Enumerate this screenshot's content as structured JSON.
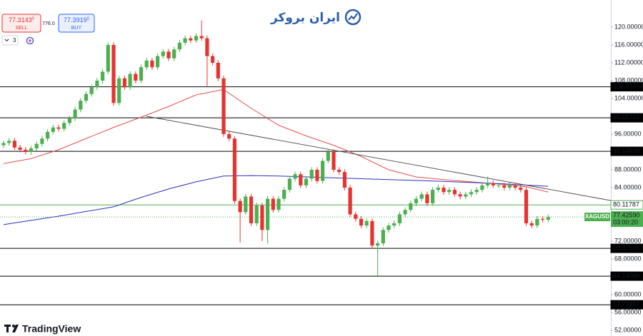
{
  "header": {
    "logo_text": "ایران بروکر",
    "brand": "TradingView",
    "sell": {
      "price": "77.31",
      "pips": "43",
      "fraction": "0",
      "label": "SELL"
    },
    "spread": "776.0",
    "buy": {
      "price": "77.39",
      "pips": "19",
      "fraction": "0",
      "label": "BUY"
    },
    "indicator_count": "3"
  },
  "chart_data": {
    "type": "candlestick",
    "symbol": "XAGUSD",
    "open": [
      93.5,
      94.0,
      94.5,
      93.0,
      92.5,
      92.0,
      92.8,
      93.8,
      95.0,
      96.5,
      97.5,
      97.2,
      98.5,
      99.5,
      101.5,
      103.5,
      105.0,
      106.5,
      108.0,
      110.0,
      116.0,
      103.0,
      108.5,
      106.5,
      109.5,
      108.0,
      111.0,
      112.5,
      111.0,
      113.5,
      114.5,
      113.0,
      115.0,
      116.5,
      117.5,
      117.0,
      118.0,
      117.5,
      113.5,
      112.0,
      108.5,
      96.0,
      95.0,
      81.0,
      78.5,
      82.0,
      76.0,
      80.0,
      74.5,
      81.5,
      79.0,
      81.5,
      83.5,
      86.0,
      87.0,
      84.5,
      86.0,
      88.0,
      85.5,
      90.0,
      92.0,
      88.0,
      87.5,
      84.0,
      78.0,
      77.0,
      75.5,
      76.5,
      71.0,
      71.5,
      74.5,
      75.5,
      76.0,
      78.0,
      79.0,
      80.5,
      81.5,
      82.5,
      80.5,
      83.5,
      84.0,
      83.0,
      83.5,
      82.5,
      82.0,
      82.5,
      83.0,
      83.5,
      84.5,
      85.0,
      84.5,
      84.5,
      84.0,
      84.5,
      84.0,
      83.5,
      76.0,
      75.5,
      77.0,
      76.8
    ],
    "high": [
      94.6,
      95.1,
      95.1,
      93.6,
      93.1,
      93.4,
      94.4,
      95.6,
      97.1,
      98.1,
      98.1,
      99.1,
      100.1,
      102.1,
      104.1,
      105.6,
      107.1,
      108.6,
      110.6,
      116.6,
      116.6,
      109.1,
      109.1,
      110.1,
      110.1,
      111.6,
      113.1,
      113.1,
      114.1,
      115.1,
      115.1,
      115.6,
      117.1,
      118.1,
      118.1,
      118.6,
      121.5,
      118.1,
      114.1,
      112.6,
      109.1,
      96.6,
      95.6,
      81.6,
      82.6,
      82.6,
      80.6,
      80.6,
      82.1,
      82.1,
      82.1,
      84.1,
      86.6,
      87.6,
      87.6,
      86.6,
      88.6,
      88.6,
      90.6,
      92.6,
      92.6,
      88.6,
      88.1,
      84.6,
      78.6,
      77.6,
      77.1,
      77.1,
      72.1,
      75.1,
      76.1,
      76.6,
      78.6,
      79.6,
      81.1,
      82.1,
      83.1,
      83.1,
      84.1,
      84.6,
      84.6,
      84.1,
      84.1,
      83.1,
      83.1,
      83.6,
      84.1,
      85.1,
      86.5,
      85.6,
      85.1,
      85.1,
      85.1,
      85.1,
      84.6,
      84.1,
      76.6,
      77.6,
      77.6,
      78.0
    ],
    "low": [
      92.9,
      93.4,
      92.4,
      91.9,
      91.4,
      91.4,
      92.2,
      93.2,
      94.4,
      95.9,
      96.6,
      96.6,
      97.9,
      98.9,
      100.9,
      102.9,
      104.4,
      105.9,
      107.4,
      109.4,
      102.4,
      102.4,
      105.9,
      105.9,
      107.4,
      107.4,
      110.4,
      110.4,
      110.4,
      112.9,
      112.4,
      112.4,
      114.4,
      115.9,
      116.4,
      116.4,
      116.9,
      106.8,
      111.4,
      107.9,
      95.4,
      94.4,
      80.4,
      71.7,
      77.9,
      75.4,
      75.4,
      72.0,
      71.5,
      78.4,
      78.4,
      80.9,
      82.9,
      85.4,
      83.9,
      83.9,
      85.4,
      84.9,
      84.9,
      89.4,
      87.4,
      86.9,
      83.4,
      77.4,
      76.4,
      74.9,
      74.9,
      70.4,
      64.2,
      70.9,
      73.9,
      74.9,
      75.4,
      77.4,
      78.4,
      79.9,
      80.9,
      79.9,
      79.9,
      82.9,
      82.4,
      82.4,
      81.9,
      81.4,
      81.4,
      81.9,
      82.4,
      82.9,
      83.9,
      83.9,
      83.9,
      83.4,
      83.4,
      83.4,
      82.9,
      75.4,
      74.9,
      74.9,
      76.2,
      76.2
    ],
    "close": [
      94.0,
      94.5,
      93.0,
      92.5,
      92.0,
      92.8,
      93.8,
      95.0,
      96.5,
      97.5,
      97.2,
      98.5,
      99.5,
      101.5,
      103.5,
      105.0,
      106.5,
      108.0,
      110.0,
      116.0,
      103.0,
      108.5,
      106.5,
      109.5,
      108.0,
      111.0,
      112.5,
      111.0,
      113.5,
      114.5,
      113.0,
      115.0,
      116.5,
      117.5,
      117.0,
      118.0,
      117.5,
      113.5,
      112.0,
      108.5,
      96.0,
      95.0,
      81.0,
      78.5,
      82.0,
      76.0,
      80.0,
      74.5,
      81.5,
      79.0,
      81.5,
      83.5,
      86.0,
      87.0,
      84.5,
      86.0,
      88.0,
      85.5,
      90.0,
      92.0,
      88.0,
      87.5,
      84.0,
      78.0,
      77.0,
      75.5,
      76.5,
      71.0,
      71.5,
      74.5,
      75.5,
      76.0,
      78.0,
      79.0,
      80.5,
      81.5,
      82.5,
      80.5,
      83.5,
      84.0,
      83.0,
      83.5,
      82.5,
      82.0,
      82.5,
      83.0,
      83.5,
      84.5,
      85.0,
      84.5,
      84.5,
      84.0,
      84.5,
      84.0,
      83.5,
      76.0,
      75.5,
      77.0,
      76.8,
      77.4
    ],
    "up_color": "#4caf50",
    "down_color": "#e5332f",
    "ylim": [
      50.72,
      126.08
    ],
    "yticks": [
      {
        "value": 120,
        "label": "120.00000"
      },
      {
        "value": 116,
        "label": "116.00000"
      },
      {
        "value": 112,
        "label": "112.00000"
      },
      {
        "value": 108,
        "label": "108.00000"
      },
      {
        "value": 104,
        "label": "104.00000"
      },
      {
        "value": 96,
        "label": "96.00000"
      },
      {
        "value": 88,
        "label": "88.00000"
      },
      {
        "value": 84,
        "label": "84.00000"
      },
      {
        "value": 72,
        "label": "72.00000"
      },
      {
        "value": 68,
        "label": "68.00000"
      },
      {
        "value": 60,
        "label": "60.00000"
      },
      {
        "value": 56,
        "label": "56.00000"
      },
      {
        "value": 52,
        "label": "52.00000"
      }
    ],
    "grid": false,
    "levels": [
      {
        "value": 106.61604,
        "color": "#000000"
      },
      {
        "value": 99.65765,
        "color": "#000000"
      },
      {
        "value": 92.14839,
        "color": "#000000"
      },
      {
        "value": 80.11787,
        "color": "#4caf50"
      },
      {
        "value": 70.37946,
        "color": "#000000"
      },
      {
        "value": 64.14086,
        "color": "#000000"
      },
      {
        "value": 57.72957,
        "color": "#000000"
      }
    ],
    "last_price": {
      "value": 77.4259,
      "label": "77.42590"
    },
    "countdown": "03:00:20",
    "price_color": "#4caf50",
    "moving_averages": [
      {
        "color": "#e84c4c",
        "x": [
          0,
          5,
          10,
          15,
          20,
          25,
          30,
          35,
          40,
          45,
          50,
          55,
          60,
          65,
          70,
          75,
          80,
          85,
          90,
          95,
          99
        ],
        "values": [
          89.4,
          90.5,
          92.5,
          95.0,
          97.5,
          99.8,
          102.2,
          104.8,
          106.0,
          101.8,
          98.0,
          95.6,
          93.5,
          91.0,
          88.0,
          86.4,
          85.8,
          85.3,
          84.8,
          84.2,
          83.0
        ]
      },
      {
        "color": "#2a2fbf",
        "x": [
          0,
          10,
          20,
          25,
          30,
          35,
          40,
          45,
          50,
          60,
          70,
          80,
          90,
          99
        ],
        "values": [
          75.7,
          77.6,
          79.7,
          81.8,
          83.7,
          85.3,
          86.6,
          86.7,
          86.6,
          86.2,
          85.8,
          85.4,
          84.9,
          84.3
        ]
      }
    ],
    "trendline": {
      "color": "#444444",
      "x": [
        26,
        110.4
      ],
      "values": [
        100.0,
        81.1
      ]
    }
  }
}
